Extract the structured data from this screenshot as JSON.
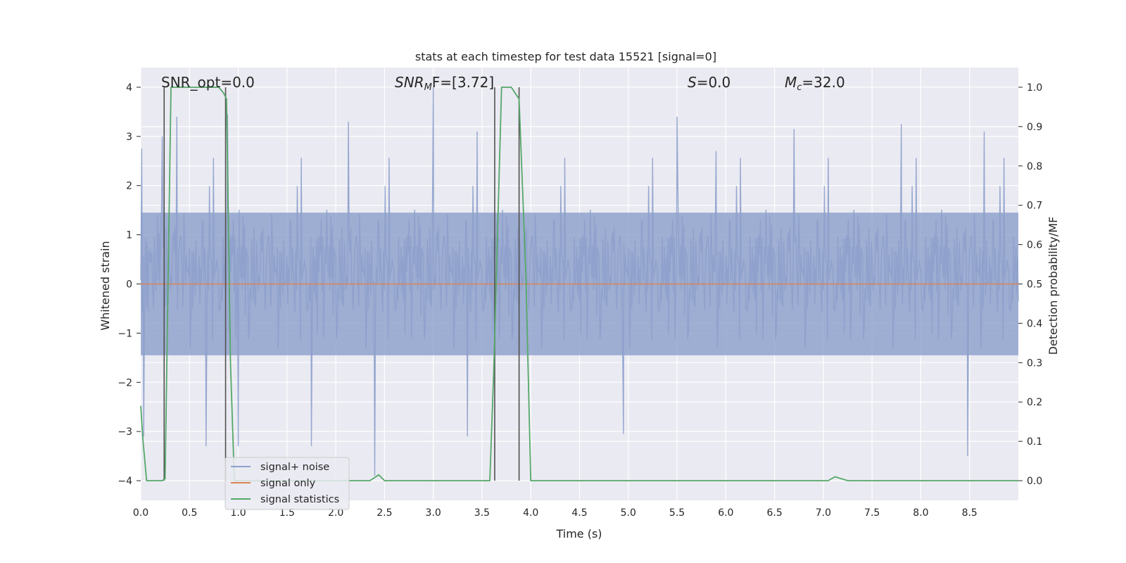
{
  "chart_data": {
    "type": "line",
    "title": "stats at each timestep for test data 15521 [signal=0]",
    "xlabel": "Time (s)",
    "ylabel": "Whitened strain",
    "ylabel_right": "Detection probability/MF",
    "xlim": [
      0.0,
      9.0
    ],
    "ylim": [
      -4.4,
      4.4
    ],
    "ylim_right": [
      -0.05,
      1.05
    ],
    "x_ticks": [
      0.0,
      0.5,
      1.0,
      1.5,
      2.0,
      2.5,
      3.0,
      3.5,
      4.0,
      4.5,
      5.0,
      5.5,
      6.0,
      6.5,
      7.0,
      7.5,
      8.0,
      8.5
    ],
    "x_tick_labels": [
      "0.0",
      "0.5",
      "1.0",
      "1.5",
      "2.0",
      "2.5",
      "3.0",
      "3.5",
      "4.0",
      "4.5",
      "5.0",
      "5.5",
      "6.0",
      "6.5",
      "7.0",
      "7.5",
      "8.0",
      "8.5"
    ],
    "y_ticks": [
      -4,
      -3,
      -2,
      -1,
      0,
      1,
      2,
      3,
      4
    ],
    "y_tick_labels": [
      "−4",
      "−3",
      "−2",
      "−1",
      "0",
      "1",
      "2",
      "3",
      "4"
    ],
    "y_right_ticks": [
      0.0,
      0.1,
      0.2,
      0.3,
      0.4,
      0.5,
      0.6,
      0.7,
      0.8,
      0.9,
      1.0
    ],
    "y_right_tick_labels": [
      "0.0",
      "0.1",
      "0.2",
      "0.3",
      "0.4",
      "0.5",
      "0.6",
      "0.7",
      "0.8",
      "0.9",
      "1.0"
    ],
    "annotations": {
      "snr_opt": "SNR_opt=0.0",
      "snr_mf_main": "SNR",
      "snr_mf_sub": "M",
      "snr_mf_rest": "F=[3.72]",
      "s_main": "S",
      "s_rest": "=0.0",
      "mc_main": "M",
      "mc_sub": "c",
      "mc_rest": "=32.0"
    },
    "legend": {
      "placement": "lower-left",
      "entries": [
        "signal+ noise",
        "signal only",
        "signal statistics"
      ]
    },
    "series": [
      {
        "name": "signal+ noise",
        "kind": "noise",
        "axis": "left",
        "description": "whitened strain noise, approximately Gaussian, sigma about 1",
        "color": "#8da0cb",
        "envelope_peaks": [
          {
            "x": 0.01,
            "y": 2.75
          },
          {
            "x": 0.22,
            "y": 3.0
          },
          {
            "x": 0.37,
            "y": 3.4
          },
          {
            "x": 0.89,
            "y": 3.45
          },
          {
            "x": 2.13,
            "y": 3.3
          },
          {
            "x": 3.0,
            "y": 4.0
          },
          {
            "x": 3.45,
            "y": 3.1
          },
          {
            "x": 5.5,
            "y": 3.4
          },
          {
            "x": 5.9,
            "y": 2.7
          },
          {
            "x": 6.7,
            "y": 3.15
          },
          {
            "x": 7.8,
            "y": 3.25
          },
          {
            "x": 8.65,
            "y": 3.1
          },
          {
            "x": 0.03,
            "y": -3.1
          },
          {
            "x": 0.67,
            "y": -3.3
          },
          {
            "x": 1.0,
            "y": -3.3
          },
          {
            "x": 1.75,
            "y": -3.3
          },
          {
            "x": 2.4,
            "y": -3.9
          },
          {
            "x": 3.35,
            "y": -3.1
          },
          {
            "x": 4.95,
            "y": -3.05
          },
          {
            "x": 8.48,
            "y": -3.5
          }
        ]
      },
      {
        "name": "signal only",
        "kind": "line",
        "axis": "left",
        "color": "#dd8452",
        "x": [
          0.0,
          9.0
        ],
        "y": [
          0.0,
          0.0
        ]
      },
      {
        "name": "signal statistics",
        "kind": "line",
        "axis": "right",
        "color": "#55a868",
        "x": [
          0.0,
          0.02,
          0.06,
          0.22,
          0.25,
          0.31,
          0.35,
          0.55,
          0.8,
          0.85,
          0.88,
          0.92,
          0.96,
          1.2,
          2.35,
          2.38,
          2.44,
          2.5,
          3.2,
          3.58,
          3.62,
          3.7,
          3.8,
          3.88,
          3.95,
          4.0,
          4.05,
          7.05,
          7.12,
          7.25,
          9.0
        ],
        "y": [
          0.19,
          0.11,
          0.0,
          0.0,
          0.005,
          1.0,
          1.0,
          1.0,
          1.0,
          0.985,
          0.97,
          0.3,
          0.0,
          0.0,
          0.0,
          0.005,
          0.015,
          0.0,
          0.0,
          0.0,
          0.28,
          1.0,
          1.0,
          0.97,
          0.52,
          0.0,
          0.0,
          0.0,
          0.01,
          0.0,
          0.0
        ]
      }
    ],
    "vertical_markers": {
      "color": "#505050",
      "x": [
        0.24,
        0.87,
        3.63,
        3.88
      ],
      "ylim": [
        -4.0,
        4.0
      ]
    }
  }
}
